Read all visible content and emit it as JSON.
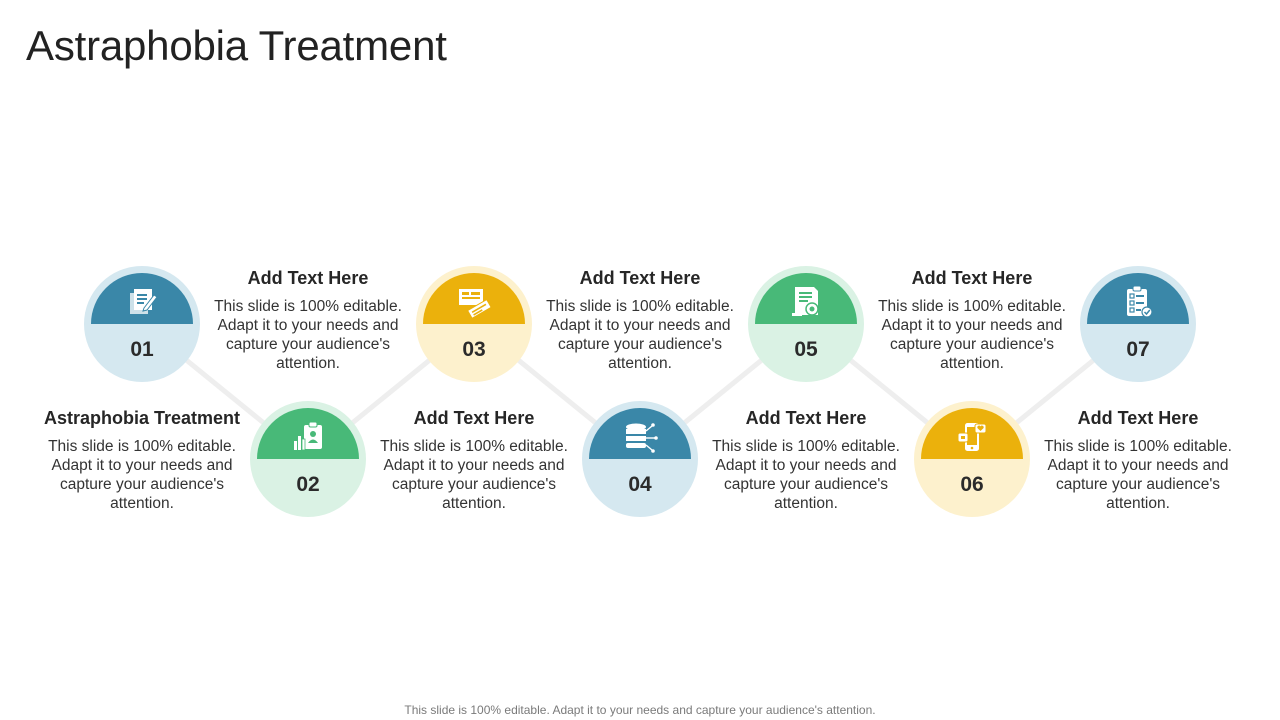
{
  "slide": {
    "title": "Astraphobia Treatment",
    "footer": "This slide is 100% editable. Adapt it to your needs and capture your audience's attention."
  },
  "colors": {
    "blue": "#3a87a8",
    "blue_light": "#d5e8f0",
    "yellow": "#ebb10c",
    "yellow_light": "#fdf1cd",
    "green": "#48b978",
    "green_light": "#daf2e4",
    "connector": "#eeeeee"
  },
  "steps": [
    {
      "number": "01",
      "icon": "notes-pencil-icon",
      "heading": "Astraphobia Treatment",
      "body": "This slide is 100% editable. Adapt it to your needs and capture your audience's attention."
    },
    {
      "number": "02",
      "icon": "clipboard-chart-icon",
      "heading": "Add Text Here",
      "body": "This slide is 100% editable. Adapt it to your needs and capture your audience's attention."
    },
    {
      "number": "03",
      "icon": "tickets-icon",
      "heading": "Add Text Here",
      "body": "This slide is 100% editable. Adapt it to your needs and capture your audience's attention."
    },
    {
      "number": "04",
      "icon": "database-network-icon",
      "heading": "Add Text Here",
      "body": "This slide is 100% editable. Adapt it to your needs and capture your audience's attention."
    },
    {
      "number": "05",
      "icon": "document-gear-icon",
      "heading": "Add Text Here",
      "body": "This slide is 100% editable. Adapt it to your needs and capture your audience's attention."
    },
    {
      "number": "06",
      "icon": "mobile-social-icon",
      "heading": "Add Text Here",
      "body": "This slide is 100% editable. Adapt it to your needs and capture your audience's attention."
    },
    {
      "number": "07",
      "icon": "checklist-icon",
      "heading": "Add Text Here",
      "body": "This slide is 100% editable. Adapt it to your needs and capture your audience's attention."
    }
  ]
}
